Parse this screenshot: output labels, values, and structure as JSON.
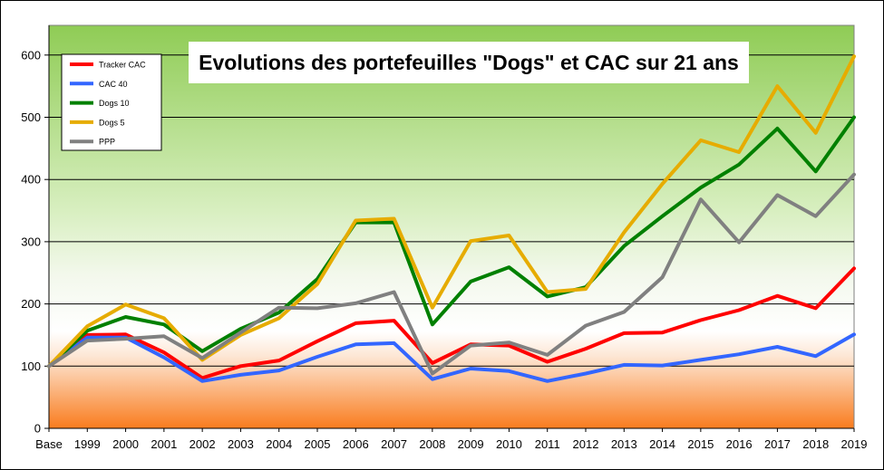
{
  "chart_data": {
    "type": "line",
    "title": "Evolutions des portefeuilles \"Dogs\" et CAC sur  21 ans",
    "xlabel": "",
    "ylabel": "",
    "ylim": [
      0,
      650
    ],
    "yticks": [
      0,
      100,
      200,
      300,
      400,
      500,
      600
    ],
    "grid": true,
    "legend_position": "top-left",
    "background": "gradient: orange at bottom, white around 100-200, green at top",
    "categories": [
      "Base",
      "1999",
      "2000",
      "2001",
      "2002",
      "2003",
      "2004",
      "2005",
      "2006",
      "2007",
      "2008",
      "2009",
      "2010",
      "2011",
      "2012",
      "2013",
      "2014",
      "2015",
      "2016",
      "2017",
      "2018",
      "2019"
    ],
    "series": [
      {
        "name": "Tracker CAC",
        "color": "#ff0000",
        "values": [
          100,
          150,
          151,
          122,
          81,
          100,
          109,
          140,
          169,
          173,
          105,
          135,
          133,
          107,
          128,
          153,
          154,
          174,
          190,
          213,
          193,
          257
        ]
      },
      {
        "name": "CAC 40",
        "color": "#3366ff",
        "values": [
          100,
          146,
          146,
          114,
          76,
          86,
          93,
          115,
          135,
          137,
          79,
          96,
          92,
          76,
          88,
          102,
          101,
          110,
          119,
          131,
          116,
          151
        ]
      },
      {
        "name": "Dogs 10",
        "color": "#008000",
        "values": [
          100,
          157,
          179,
          167,
          124,
          160,
          186,
          240,
          331,
          331,
          167,
          236,
          259,
          212,
          227,
          293,
          341,
          387,
          424,
          482,
          413,
          500
        ]
      },
      {
        "name": "Dogs 5",
        "color": "#e6ac00",
        "values": [
          100,
          164,
          199,
          177,
          110,
          150,
          177,
          232,
          334,
          337,
          194,
          301,
          310,
          219,
          224,
          315,
          393,
          463,
          444,
          550,
          475,
          598
        ]
      },
      {
        "name": "PPP",
        "color": "#808080",
        "values": [
          100,
          141,
          144,
          148,
          113,
          154,
          194,
          193,
          201,
          219,
          88,
          133,
          138,
          118,
          165,
          187,
          243,
          368,
          299,
          375,
          341,
          408
        ]
      }
    ]
  }
}
